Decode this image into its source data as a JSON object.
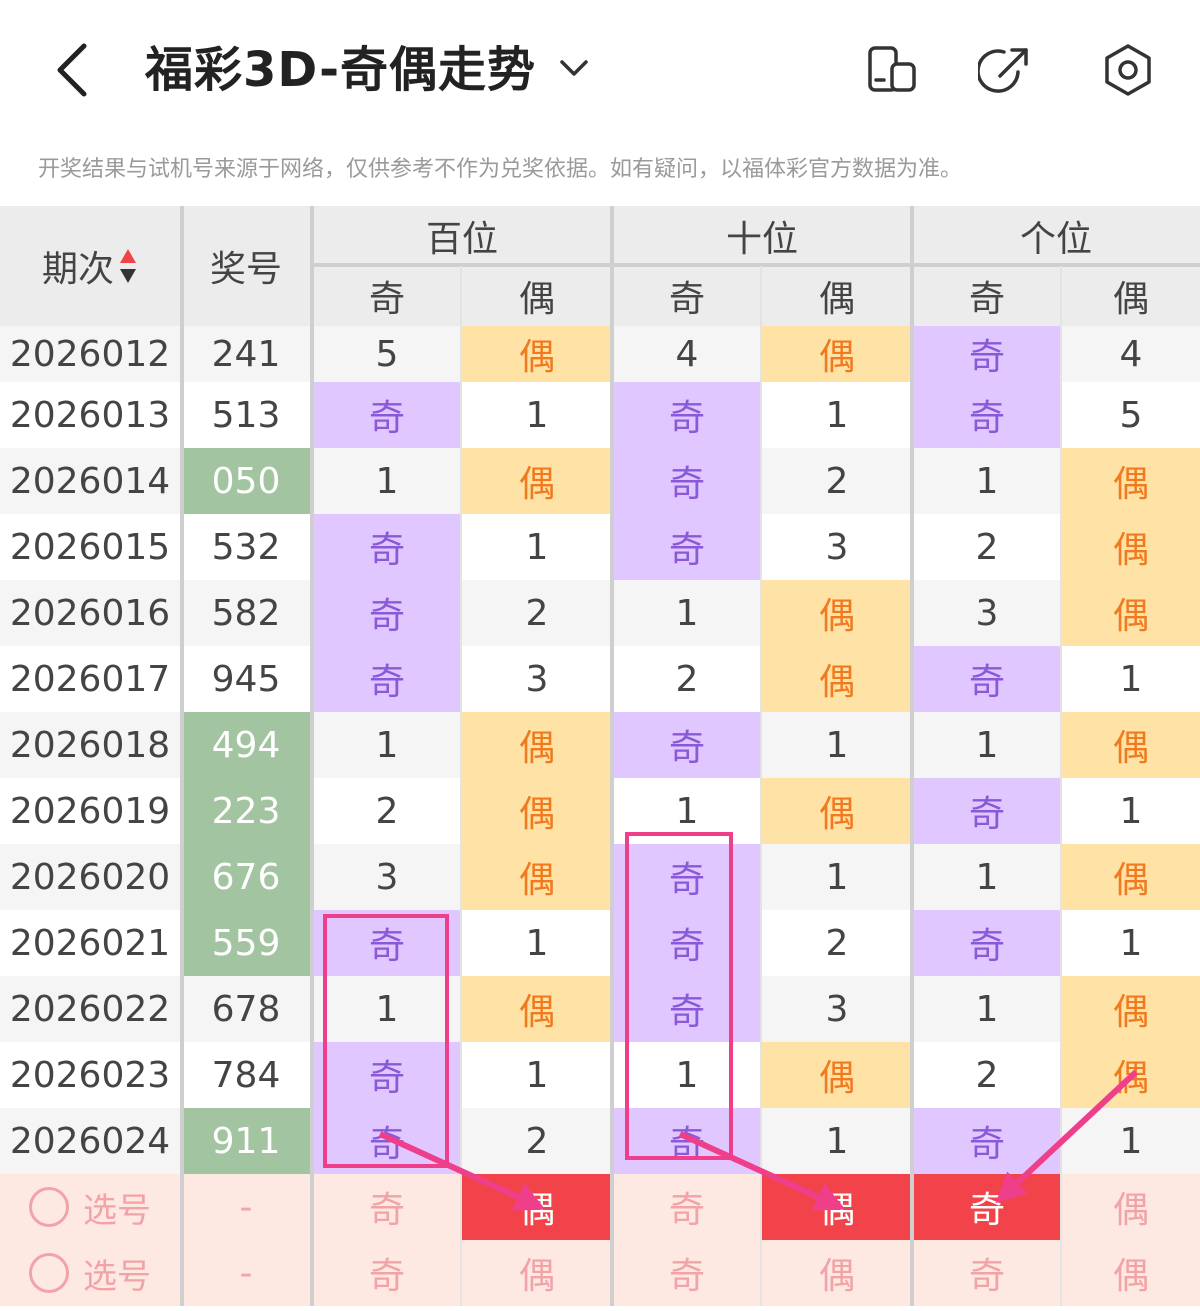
{
  "header": {
    "title": "福彩3D-奇偶走势",
    "back_icon": "back-arrow-icon",
    "dropdown_icon": "chevron-down-icon",
    "icons": [
      "layout-toggle-icon",
      "share-icon",
      "settings-icon"
    ]
  },
  "notice": "开奖结果与试机号来源于网络，仅供参考不作为兑奖依据。如有疑问，以福体彩官方数据为准。",
  "table": {
    "col_period": "期次",
    "col_number": "奖号",
    "groups": [
      "百位",
      "十位",
      "个位"
    ],
    "sub": [
      "奇",
      "偶"
    ],
    "colors": {
      "odd_bg": "#e1c7ff",
      "odd_text": "#8a59d8",
      "even_bg": "#ffe3a6",
      "even_text": "#f07a1f",
      "green": "#a3c4a0",
      "red": "#f2434b",
      "highlight_box": "#ef3f8a"
    },
    "rows": [
      {
        "period": "2026012",
        "number": "241",
        "green": false,
        "cells": [
          "5",
          "偶",
          "4",
          "偶",
          "奇",
          "4"
        ]
      },
      {
        "period": "2026013",
        "number": "513",
        "green": false,
        "cells": [
          "奇",
          "1",
          "奇",
          "1",
          "奇",
          "5"
        ]
      },
      {
        "period": "2026014",
        "number": "050",
        "green": true,
        "cells": [
          "1",
          "偶",
          "奇",
          "2",
          "1",
          "偶"
        ]
      },
      {
        "period": "2026015",
        "number": "532",
        "green": false,
        "cells": [
          "奇",
          "1",
          "奇",
          "3",
          "2",
          "偶"
        ]
      },
      {
        "period": "2026016",
        "number": "582",
        "green": false,
        "cells": [
          "奇",
          "2",
          "1",
          "偶",
          "3",
          "偶"
        ]
      },
      {
        "period": "2026017",
        "number": "945",
        "green": false,
        "cells": [
          "奇",
          "3",
          "2",
          "偶",
          "奇",
          "1"
        ]
      },
      {
        "period": "2026018",
        "number": "494",
        "green": true,
        "cells": [
          "1",
          "偶",
          "奇",
          "1",
          "1",
          "偶"
        ]
      },
      {
        "period": "2026019",
        "number": "223",
        "green": true,
        "cells": [
          "2",
          "偶",
          "1",
          "偶",
          "奇",
          "1"
        ]
      },
      {
        "period": "2026020",
        "number": "676",
        "green": true,
        "cells": [
          "3",
          "偶",
          "奇",
          "1",
          "1",
          "偶"
        ]
      },
      {
        "period": "2026021",
        "number": "559",
        "green": true,
        "cells": [
          "奇",
          "1",
          "奇",
          "2",
          "奇",
          "1"
        ]
      },
      {
        "period": "2026022",
        "number": "678",
        "green": false,
        "cells": [
          "1",
          "偶",
          "奇",
          "3",
          "1",
          "偶"
        ]
      },
      {
        "period": "2026023",
        "number": "784",
        "green": false,
        "cells": [
          "奇",
          "1",
          "1",
          "偶",
          "2",
          "偶"
        ]
      },
      {
        "period": "2026024",
        "number": "911",
        "green": true,
        "cells": [
          "奇",
          "2",
          "奇",
          "1",
          "奇",
          "1"
        ]
      }
    ],
    "select_rows": [
      {
        "label": "选号",
        "number": "-",
        "cells": [
          "奇",
          "偶",
          "奇",
          "偶",
          "奇",
          "偶"
        ],
        "selected": [
          false,
          true,
          false,
          true,
          true,
          false
        ]
      },
      {
        "label": "选号",
        "number": "-",
        "cells": [
          "奇",
          "偶",
          "奇",
          "偶",
          "奇",
          "偶"
        ],
        "selected": [
          false,
          false,
          false,
          false,
          false,
          false
        ]
      }
    ]
  }
}
